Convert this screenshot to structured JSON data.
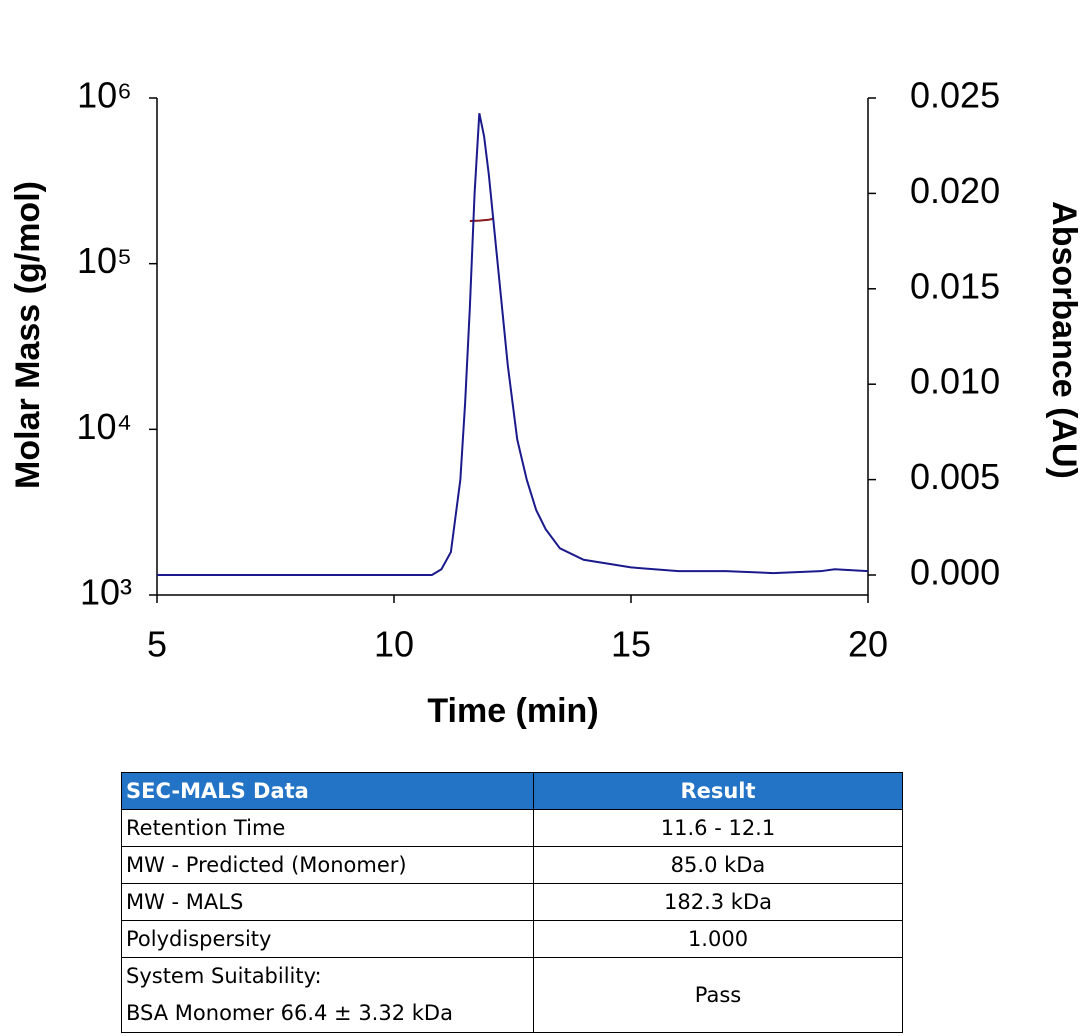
{
  "chart_data": {
    "type": "line",
    "xlabel": "Time (min)",
    "ylabel": "Molar Mass (g/mol)",
    "y2label": "Absorbance (AU)",
    "xlim": [
      5,
      20
    ],
    "xticks": [
      5,
      10,
      15,
      20
    ],
    "ylim": [
      1000,
      1000000
    ],
    "yscale": "log",
    "yticks": [
      {
        "value": 1000,
        "label": "10³"
      },
      {
        "value": 10000,
        "label": "10⁴"
      },
      {
        "value": 100000,
        "label": "10⁵"
      },
      {
        "value": 1000000,
        "label": "10⁶"
      }
    ],
    "y2lim": [
      0,
      0.025
    ],
    "y2ticks": [
      {
        "value": 0,
        "label": "0.000"
      },
      0.005,
      {
        "value": 0.01,
        "label": "0.010"
      },
      0.015,
      {
        "value": 0.02,
        "label": "0.020"
      },
      0.025
    ],
    "grid": false,
    "series": [
      {
        "color": "#8b1a1a",
        "x": [
          11.6,
          11.8,
          12.0,
          12.1
        ],
        "values": [
          181000,
          182000,
          184000,
          187000
        ]
      },
      {
        "color": "#1a1a8c",
        "axis": "y2",
        "x": [
          5,
          6,
          8,
          10,
          10.8,
          11.0,
          11.2,
          11.4,
          11.5,
          11.6,
          11.7,
          11.8,
          11.9,
          12.0,
          12.2,
          12.4,
          12.6,
          12.8,
          13.0,
          13.2,
          13.5,
          14,
          15,
          16,
          17,
          18,
          19,
          19.3,
          20
        ],
        "values": [
          0,
          0,
          0,
          0,
          0,
          0.0003,
          0.0012,
          0.005,
          0.009,
          0.014,
          0.02,
          0.0242,
          0.023,
          0.021,
          0.016,
          0.011,
          0.0071,
          0.005,
          0.0034,
          0.0024,
          0.0014,
          0.0008,
          0.0004,
          0.0002,
          0.0002,
          0.0001,
          0.0002,
          0.0003,
          0.0002
        ]
      }
    ]
  },
  "table": {
    "header": [
      "SEC-MALS Data",
      "Result"
    ],
    "rows": [
      [
        "Retention Time",
        "11.6 - 12.1"
      ],
      [
        "MW - Predicted (Monomer)",
        "85.0 kDa"
      ],
      [
        "MW - MALS",
        "182.3 kDa"
      ],
      [
        "Polydispersity",
        "1.000"
      ],
      [
        [
          "System Suitability:",
          "BSA Monomer 66.4 ± 3.32 kDa"
        ],
        "Pass"
      ]
    ]
  }
}
